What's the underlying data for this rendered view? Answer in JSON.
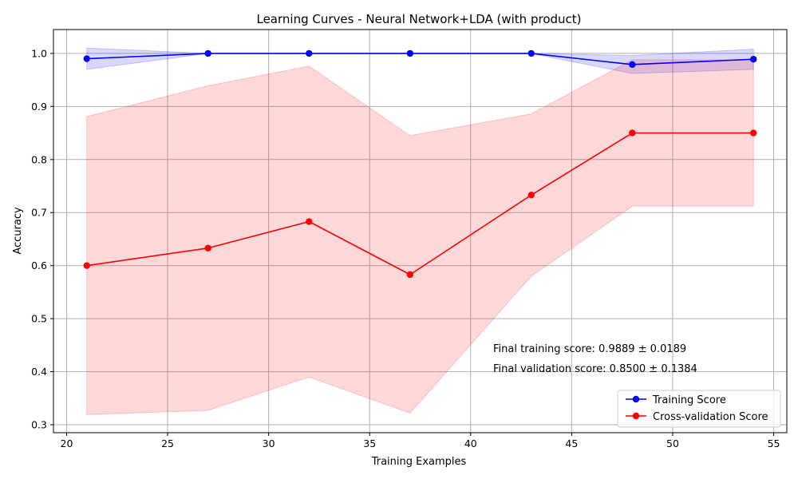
{
  "chart_data": {
    "type": "line",
    "title": "Learning Curves - Neural Network+LDA (with product)",
    "xlabel": "Training Examples",
    "ylabel": "Accuracy",
    "xlim": [
      19.35,
      55.65
    ],
    "ylim": [
      0.285,
      1.045
    ],
    "xticks": [
      20,
      25,
      30,
      35,
      40,
      45,
      50,
      55
    ],
    "yticks": [
      0.3,
      0.4,
      0.5,
      0.6,
      0.7,
      0.8,
      0.9,
      1.0
    ],
    "xtick_labels": [
      "20",
      "25",
      "30",
      "35",
      "40",
      "45",
      "50",
      "55"
    ],
    "ytick_labels": [
      "0.3",
      "0.4",
      "0.5",
      "0.6",
      "0.7",
      "0.8",
      "0.9",
      "1.0"
    ],
    "grid": true,
    "legend_position": "bottom-right",
    "x": [
      21,
      27,
      32,
      37,
      43,
      48,
      54
    ],
    "series": [
      {
        "name": "Training Score",
        "color": "#0000ff",
        "band_color": "#0000ff",
        "values": [
          0.99,
          1.0,
          1.0,
          1.0,
          1.0,
          0.979,
          0.989
        ],
        "upper": [
          1.01,
          1.0,
          1.0,
          1.0,
          1.0,
          0.996,
          1.008
        ],
        "lower": [
          0.97,
          1.0,
          1.0,
          1.0,
          1.0,
          0.962,
          0.97
        ]
      },
      {
        "name": "Cross-validation Score",
        "color": "#ff0000",
        "band_color": "#ff0000",
        "values": [
          0.6,
          0.633,
          0.683,
          0.583,
          0.733,
          0.85,
          0.85
        ],
        "upper": [
          0.881,
          0.939,
          0.976,
          0.845,
          0.886,
          0.988,
          0.988
        ],
        "lower": [
          0.319,
          0.327,
          0.39,
          0.322,
          0.58,
          0.712,
          0.712
        ]
      }
    ],
    "annotations": [
      "Final training score: 0.9889 ± 0.0189",
      "Final validation score: 0.8500 ± 0.1384"
    ]
  }
}
